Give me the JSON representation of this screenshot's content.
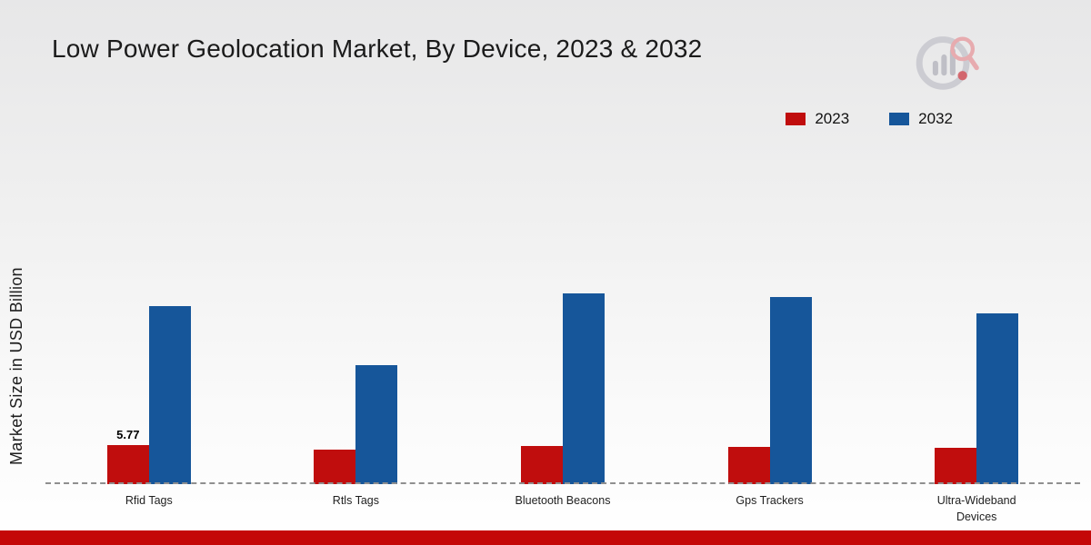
{
  "header": {
    "title": "Low Power Geolocation Market, By Device, 2023 & 2032",
    "logo": "market-research-logo"
  },
  "legend": {
    "items": [
      {
        "label": "2023",
        "color": "#c00d0d"
      },
      {
        "label": "2032",
        "color": "#16569a"
      }
    ]
  },
  "chart_data": {
    "type": "bar",
    "title": "Low Power Geolocation Market, By Device, 2023 & 2032",
    "categories": [
      "Rfid Tags",
      "Rtls Tags",
      "Bluetooth Beacons",
      "Gps Trackers",
      "Ultra-Wideband Devices"
    ],
    "series": [
      {
        "name": "2023",
        "color": "#c00d0d",
        "values": [
          5.77,
          5.1,
          5.6,
          5.5,
          5.4
        ]
      },
      {
        "name": "2032",
        "color": "#16569a",
        "values": [
          26.3,
          17.6,
          28.2,
          27.6,
          25.2
        ]
      }
    ],
    "annotations": [
      {
        "category_index": 0,
        "series_index": 0,
        "text": "5.77"
      }
    ],
    "xlabel": "",
    "ylabel": "Market Size in USD Billion",
    "ylim": [
      0,
      52
    ],
    "grid": false,
    "legend_position": "top-right",
    "baseline_style": "dashed"
  },
  "footer": {
    "strip_color": "#c40808"
  }
}
